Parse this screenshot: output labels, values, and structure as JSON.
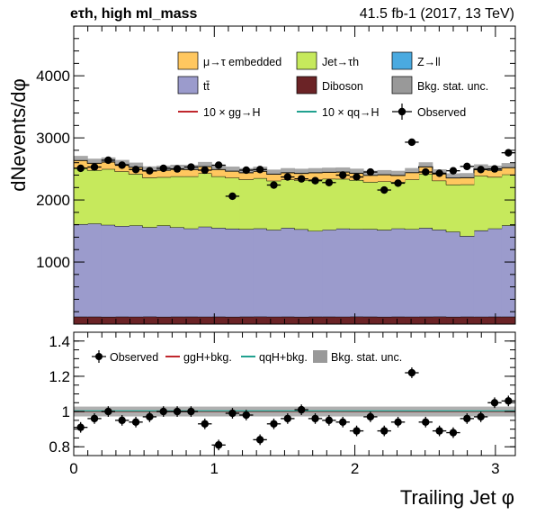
{
  "header": {
    "channel": "eτh, high ml_mass",
    "lumi": "41.5 fb-1 (2017, 13 TeV)"
  },
  "axes": {
    "ylabel": "dNevents/dφ",
    "xlabel": "Trailing Jet φ",
    "main_yticks": [
      1000,
      2000,
      3000,
      4000
    ],
    "ratio_yticks": [
      "0.8",
      "1",
      "1.2",
      "1.4"
    ],
    "xticks": [
      0,
      1,
      2,
      3
    ]
  },
  "legend_main": [
    {
      "label": "μ→τ embedded",
      "color": "#ffc75f",
      "kind": "box"
    },
    {
      "label": "Jet→τh",
      "color": "#c6e95c",
      "kind": "box"
    },
    {
      "label": "Z→ll",
      "color": "#4aaae0",
      "kind": "box"
    },
    {
      "label": "tt̄",
      "color": "#9b9bcc",
      "kind": "box"
    },
    {
      "label": "Diboson",
      "color": "#6b2326",
      "kind": "box"
    },
    {
      "label": "Bkg. stat. unc.",
      "color": "#999999",
      "kind": "box"
    },
    {
      "label": "10 × gg→H",
      "color": "#c0272d",
      "kind": "line"
    },
    {
      "label": "10 × qq→H",
      "color": "#21a18f",
      "kind": "line"
    },
    {
      "label": "Observed",
      "color": "#000000",
      "kind": "marker"
    }
  ],
  "legend_ratio": [
    {
      "label": "Observed",
      "color": "#000000",
      "kind": "marker"
    },
    {
      "label": "ggH+bkg.",
      "color": "#c0272d",
      "kind": "line"
    },
    {
      "label": "qqH+bkg.",
      "color": "#21a18f",
      "kind": "line"
    },
    {
      "label": "Bkg. stat. unc.",
      "color": "#999999",
      "kind": "box"
    }
  ],
  "chart_data": [
    {
      "type": "bar",
      "stacked": true,
      "x_range": [
        0,
        3.1416
      ],
      "ylim": [
        0,
        4800
      ],
      "n_bins": 32,
      "series": [
        {
          "name": "Diboson",
          "color": "#6b2326",
          "values": [
            120,
            120,
            118,
            120,
            119,
            121,
            118,
            120,
            120,
            119,
            120,
            118,
            120,
            121,
            119,
            120,
            118,
            120,
            120,
            119,
            121,
            120,
            118,
            120,
            119,
            120,
            121,
            118,
            120,
            119,
            120,
            120
          ]
        },
        {
          "name": "tt̄",
          "color": "#9b9bcc",
          "values": [
            1490,
            1500,
            1480,
            1460,
            1470,
            1440,
            1470,
            1440,
            1420,
            1450,
            1430,
            1420,
            1410,
            1420,
            1400,
            1430,
            1410,
            1380,
            1400,
            1420,
            1410,
            1410,
            1400,
            1420,
            1410,
            1430,
            1400,
            1370,
            1300,
            1390,
            1420,
            1470
          ]
        },
        {
          "name": "Jet→τh",
          "color": "#c6e95c",
          "values": [
            910,
            860,
            900,
            880,
            830,
            800,
            780,
            820,
            840,
            860,
            830,
            820,
            800,
            810,
            790,
            780,
            790,
            830,
            820,
            800,
            790,
            760,
            780,
            750,
            800,
            870,
            790,
            760,
            830,
            880,
            830,
            820
          ]
        },
        {
          "name": "μ→τ embedded",
          "color": "#ffc75f",
          "values": [
            115,
            110,
            112,
            110,
            108,
            105,
            110,
            112,
            110,
            108,
            110,
            105,
            108,
            110,
            105,
            108,
            110,
            108,
            105,
            110,
            108,
            106,
            108,
            105,
            110,
            112,
            108,
            106,
            108,
            110,
            108,
            110
          ]
        },
        {
          "name": "Z→ll",
          "color": "#4aaae0",
          "values": [
            5,
            5,
            5,
            5,
            5,
            5,
            5,
            5,
            5,
            5,
            5,
            5,
            5,
            5,
            5,
            5,
            5,
            5,
            5,
            5,
            5,
            5,
            5,
            5,
            5,
            5,
            5,
            5,
            5,
            5,
            5,
            5
          ]
        },
        {
          "name": "Bkg. stat. unc.",
          "color": "#999999",
          "values": [
            70,
            70,
            70,
            70,
            70,
            70,
            70,
            70,
            70,
            70,
            70,
            70,
            70,
            70,
            70,
            70,
            70,
            70,
            70,
            70,
            70,
            70,
            70,
            70,
            70,
            70,
            70,
            70,
            70,
            70,
            70,
            70
          ]
        }
      ],
      "observed": {
        "name": "Observed",
        "values": [
          2510,
          2530,
          2640,
          2560,
          2490,
          2470,
          2510,
          2500,
          2530,
          2480,
          2560,
          2060,
          2480,
          2490,
          2240,
          2370,
          2340,
          2310,
          2280,
          2400,
          2370,
          2450,
          2160,
          2270,
          2930,
          2450,
          2430,
          2470,
          2540,
          2490,
          2500,
          2760
        ],
        "errors": [
          55,
          55,
          56,
          55,
          54,
          54,
          55,
          55,
          55,
          54,
          55,
          50,
          54,
          54,
          52,
          53,
          53,
          52,
          52,
          54,
          53,
          54,
          50,
          52,
          58,
          54,
          54,
          54,
          55,
          54,
          55,
          57
        ]
      }
    },
    {
      "type": "scatter",
      "x_range": [
        0,
        3.1416
      ],
      "ylim": [
        0.75,
        1.45
      ],
      "ratio_values": [
        0.91,
        0.96,
        1.0,
        0.95,
        0.94,
        0.97,
        1.0,
        1.0,
        1.0,
        0.93,
        0.81,
        0.99,
        0.98,
        0.84,
        0.93,
        0.96,
        1.01,
        0.96,
        0.95,
        0.94,
        0.89,
        0.97,
        0.89,
        0.94,
        1.22,
        0.94,
        0.89,
        0.88,
        0.96,
        0.97,
        1.05,
        1.06
      ],
      "ratio_errors": [
        0.03,
        0.03,
        0.03,
        0.03,
        0.03,
        0.03,
        0.03,
        0.03,
        0.03,
        0.03,
        0.03,
        0.03,
        0.03,
        0.03,
        0.03,
        0.03,
        0.03,
        0.03,
        0.03,
        0.03,
        0.03,
        0.03,
        0.03,
        0.03,
        0.03,
        0.03,
        0.03,
        0.03,
        0.03,
        0.03,
        0.03,
        0.03
      ],
      "stat_band": 0.028,
      "signal_lines": [
        1.0,
        1.003
      ]
    }
  ]
}
